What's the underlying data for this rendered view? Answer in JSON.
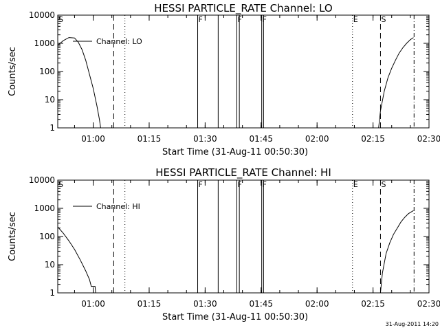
{
  "footer": {
    "timestamp": "31-Aug-2011 14:20"
  },
  "chart_data": [
    {
      "type": "line",
      "title": "HESSI PARTICLE_RATE Channel: LO",
      "xlabel": "Start Time (31-Aug-11 00:50:30)",
      "ylabel": "Counts/sec",
      "y_scale": "log",
      "ylim": [
        1,
        10000
      ],
      "xlim": [
        "00:50:30",
        "02:30:00"
      ],
      "x_ticks": [
        "01:00",
        "01:15",
        "01:30",
        "01:45",
        "02:00",
        "02:15",
        "02:30"
      ],
      "y_ticks": [
        "1",
        "10",
        "100",
        "1000",
        "10000"
      ],
      "legend": {
        "label": "Channel: LO",
        "placement": "top-left"
      },
      "series": [
        {
          "name": "Channel: LO",
          "segments": [
            [
              [
                "00:50:30",
                850
              ],
              [
                "00:52:00",
                1250
              ],
              [
                "00:53:30",
                1600
              ],
              [
                "00:55:00",
                1550
              ],
              [
                "00:56:00",
                1100
              ],
              [
                "00:57:00",
                600
              ],
              [
                "00:58:00",
                250
              ],
              [
                "00:59:00",
                80
              ],
              [
                "01:00:00",
                25
              ],
              [
                "01:01:00",
                6
              ],
              [
                "01:01:40",
                2
              ],
              [
                "01:02:00",
                1
              ]
            ],
            [
              [
                "02:16:30",
                1
              ],
              [
                "02:17:00",
                4
              ],
              [
                "02:18:00",
                20
              ],
              [
                "02:19:00",
                60
              ],
              [
                "02:20:00",
                130
              ],
              [
                "02:21:00",
                250
              ],
              [
                "02:22:00",
                450
              ],
              [
                "02:23:00",
                700
              ],
              [
                "02:24:00",
                1000
              ],
              [
                "02:25:00",
                1350
              ],
              [
                "02:25:50",
                1600
              ]
            ]
          ]
        }
      ],
      "markers": [
        {
          "label": "S",
          "time": "00:50:30",
          "line": "none"
        },
        {
          "time": "01:05:30",
          "line": "dashed"
        },
        {
          "time": "01:08:30",
          "line": "dotted"
        },
        {
          "label": "F",
          "time": "01:28:00",
          "line": "solid"
        },
        {
          "time": "01:33:30",
          "line": "solid"
        },
        {
          "label": "F",
          "time": "01:38:30",
          "line": "solid"
        },
        {
          "time": "01:39:10",
          "line": "solid"
        },
        {
          "label": "F",
          "time": "01:45:10",
          "line": "solid"
        },
        {
          "time": "01:45:40",
          "line": "solid"
        },
        {
          "label": "E",
          "time": "02:09:30",
          "line": "dotted"
        },
        {
          "label": "S",
          "time": "02:17:00",
          "line": "dashed"
        },
        {
          "time": "02:26:00",
          "line": "dashdot"
        }
      ]
    },
    {
      "type": "line",
      "title": "HESSI PARTICLE_RATE Channel: HI",
      "xlabel": "Start Time (31-Aug-11 00:50:30)",
      "ylabel": "Counts/sec",
      "y_scale": "log",
      "ylim": [
        1,
        10000
      ],
      "xlim": [
        "00:50:30",
        "02:30:00"
      ],
      "x_ticks": [
        "01:00",
        "01:15",
        "01:30",
        "01:45",
        "02:00",
        "02:15",
        "02:30"
      ],
      "y_ticks": [
        "1",
        "10",
        "100",
        "1000",
        "10000"
      ],
      "legend": {
        "label": "Channel: HI",
        "placement": "top-left"
      },
      "series": [
        {
          "name": "Channel: HI",
          "segments": [
            [
              [
                "00:50:30",
                220
              ],
              [
                "00:52:00",
                130
              ],
              [
                "00:53:30",
                70
              ],
              [
                "00:55:00",
                35
              ],
              [
                "00:56:30",
                15
              ],
              [
                "00:58:00",
                6
              ],
              [
                "00:59:00",
                3
              ],
              [
                "00:59:30",
                1.7
              ],
              [
                "01:00:30",
                1.7
              ],
              [
                "01:00:40",
                1
              ]
            ],
            [
              [
                "02:17:00",
                1
              ],
              [
                "02:17:30",
                5
              ],
              [
                "02:18:30",
                25
              ],
              [
                "02:19:30",
                60
              ],
              [
                "02:20:30",
                120
              ],
              [
                "02:21:30",
                200
              ],
              [
                "02:22:30",
                330
              ],
              [
                "02:23:30",
                480
              ],
              [
                "02:24:30",
                650
              ],
              [
                "02:25:50",
                830
              ]
            ]
          ]
        }
      ],
      "markers": [
        {
          "label": "S",
          "time": "00:50:30",
          "line": "none"
        },
        {
          "time": "01:05:30",
          "line": "dashed"
        },
        {
          "time": "01:08:30",
          "line": "dotted"
        },
        {
          "label": "F",
          "time": "01:28:00",
          "line": "solid"
        },
        {
          "time": "01:33:30",
          "line": "solid"
        },
        {
          "label": "F",
          "time": "01:38:30",
          "line": "solid"
        },
        {
          "time": "01:39:10",
          "line": "solid"
        },
        {
          "label": "F",
          "time": "01:45:10",
          "line": "solid"
        },
        {
          "time": "01:45:40",
          "line": "solid"
        },
        {
          "label": "E",
          "time": "02:09:30",
          "line": "dotted"
        },
        {
          "label": "S",
          "time": "02:17:00",
          "line": "dashed"
        },
        {
          "time": "02:26:00",
          "line": "dashdot"
        }
      ]
    }
  ]
}
